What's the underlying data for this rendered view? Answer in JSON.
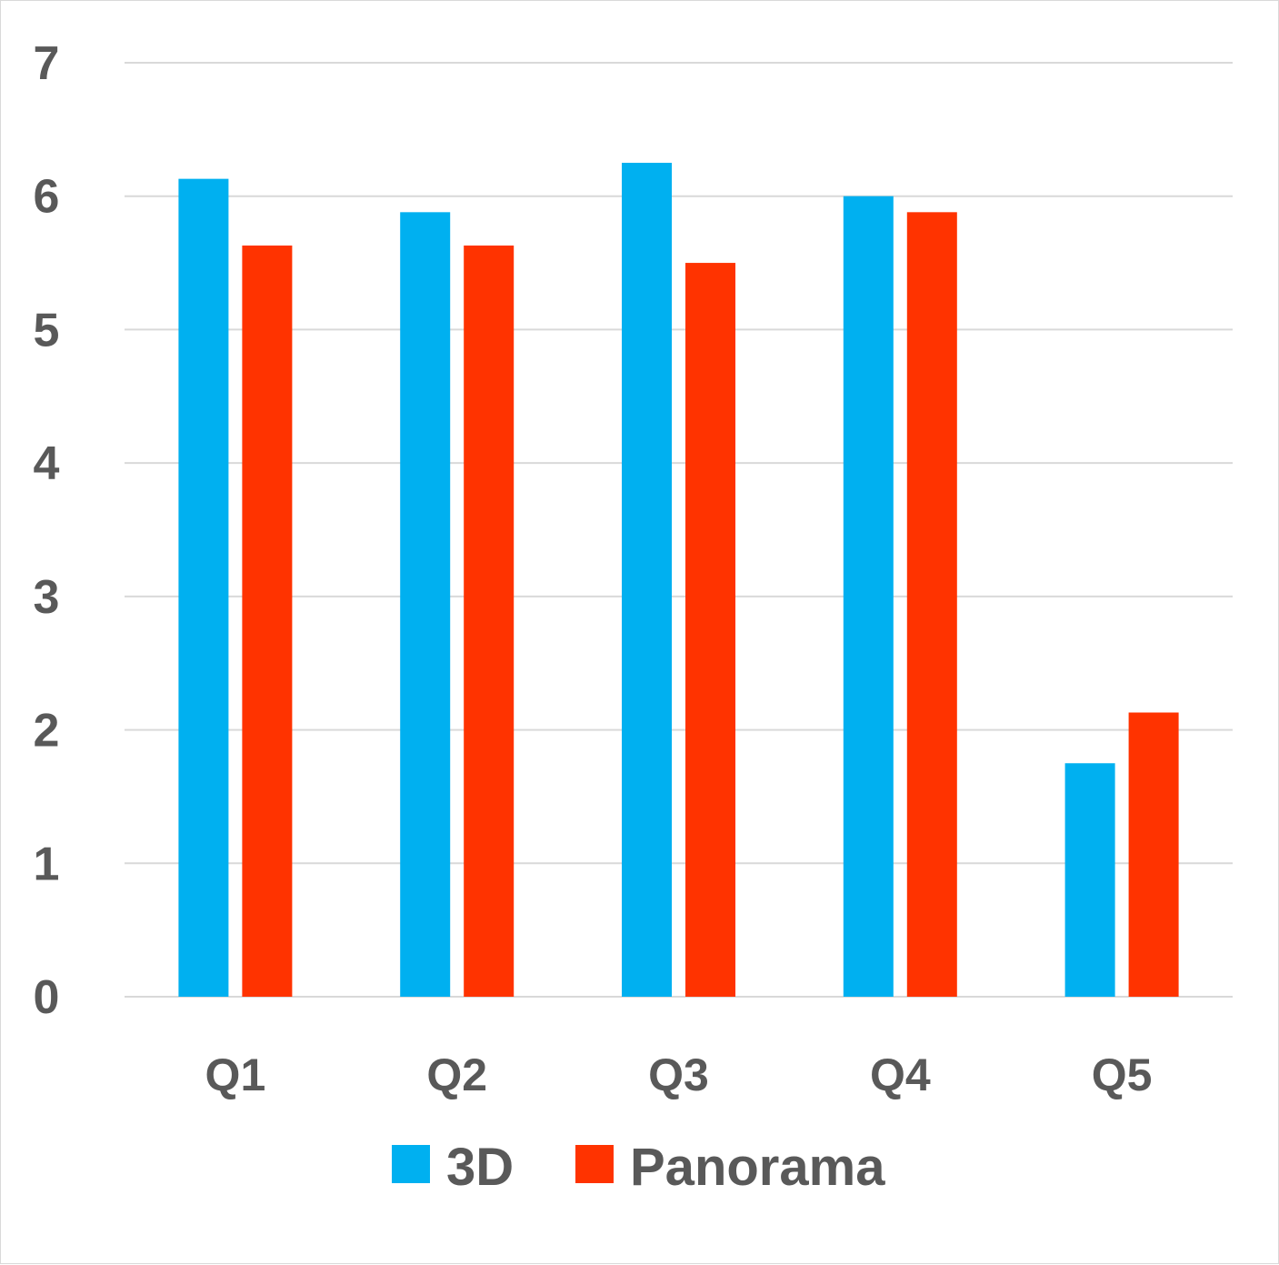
{
  "chart_data": {
    "type": "bar",
    "title": "",
    "xlabel": "",
    "ylabel": "",
    "ylim": [
      0,
      7
    ],
    "yticks": [
      0,
      1,
      2,
      3,
      4,
      5,
      6,
      7
    ],
    "grid": true,
    "legend_position": "bottom",
    "categories": [
      "Q1",
      "Q2",
      "Q3",
      "Q4",
      "Q5"
    ],
    "series": [
      {
        "name": "3D",
        "color": "#00b0f0",
        "values": [
          6.13,
          5.88,
          6.25,
          6.0,
          1.75
        ]
      },
      {
        "name": "Panorama",
        "color": "#ff3300",
        "values": [
          5.63,
          5.63,
          5.5,
          5.88,
          2.13
        ]
      }
    ]
  }
}
